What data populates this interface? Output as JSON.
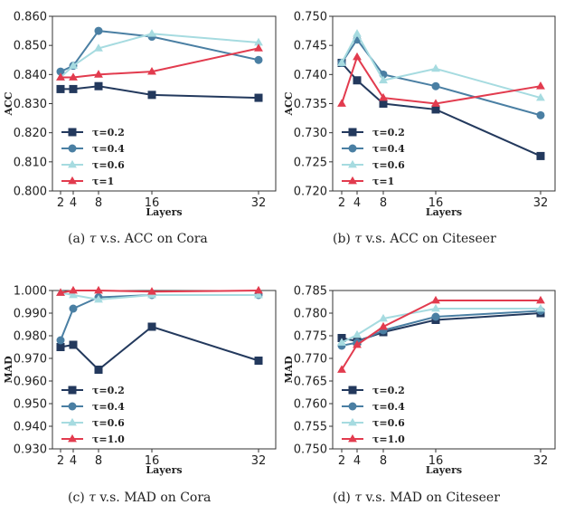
{
  "figure": {
    "captions": [
      {
        "label": "(a)",
        "tau": "τ",
        "text": "v.s. ACC on Cora"
      },
      {
        "label": "(b)",
        "tau": "τ",
        "text": "v.s. ACC on Citeseer"
      },
      {
        "label": "(c)",
        "tau": "τ",
        "text": "v.s. MAD on Cora"
      },
      {
        "label": "(d)",
        "tau": "τ",
        "text": "v.s. MAD on Citeseer"
      }
    ]
  },
  "chart_data": [
    {
      "type": "line",
      "title": "",
      "xlabel": "Layers",
      "ylabel": "ACC",
      "x": [
        2,
        4,
        8,
        16,
        32
      ],
      "xticks": [
        "2",
        "4",
        "8",
        "16",
        "32"
      ],
      "ylim": [
        0.8,
        0.86
      ],
      "yticks": [
        "0.800",
        "0.810",
        "0.820",
        "0.830",
        "0.840",
        "0.850",
        "0.860"
      ],
      "grid": false,
      "legend_position": "lower-left",
      "series": [
        {
          "name": "τ=0.2",
          "color": "#23395d",
          "marker": "square",
          "values": [
            0.835,
            0.835,
            0.836,
            0.833,
            0.832
          ]
        },
        {
          "name": "τ=0.4",
          "color": "#4a7fa3",
          "marker": "circle",
          "values": [
            0.841,
            0.843,
            0.855,
            0.853,
            0.845
          ]
        },
        {
          "name": "τ=0.6",
          "color": "#a6dbe0",
          "marker": "triangle",
          "values": [
            0.839,
            0.843,
            0.849,
            0.854,
            0.851
          ]
        },
        {
          "name": "τ=1",
          "color": "#e23b4e",
          "marker": "triangle",
          "values": [
            0.839,
            0.839,
            0.84,
            0.841,
            0.849
          ]
        }
      ]
    },
    {
      "type": "line",
      "title": "",
      "xlabel": "Layers",
      "ylabel": "ACC",
      "x": [
        2,
        4,
        8,
        16,
        32
      ],
      "xticks": [
        "2",
        "4",
        "8",
        "16",
        "32"
      ],
      "ylim": [
        0.72,
        0.75
      ],
      "yticks": [
        "0.720",
        "0.725",
        "0.730",
        "0.735",
        "0.740",
        "0.745",
        "0.750"
      ],
      "grid": false,
      "legend_position": "lower-left",
      "series": [
        {
          "name": "τ=0.2",
          "color": "#23395d",
          "marker": "square",
          "values": [
            0.742,
            0.739,
            0.735,
            0.734,
            0.726
          ]
        },
        {
          "name": "τ=0.4",
          "color": "#4a7fa3",
          "marker": "circle",
          "values": [
            0.742,
            0.746,
            0.74,
            0.738,
            0.733
          ]
        },
        {
          "name": "τ=0.6",
          "color": "#a6dbe0",
          "marker": "triangle",
          "values": [
            0.742,
            0.747,
            0.739,
            0.741,
            0.736
          ]
        },
        {
          "name": "τ=1",
          "color": "#e23b4e",
          "marker": "triangle",
          "values": [
            0.735,
            0.743,
            0.736,
            0.735,
            0.738
          ]
        }
      ]
    },
    {
      "type": "line",
      "title": "",
      "xlabel": "Layers",
      "ylabel": "MAD",
      "x": [
        2,
        4,
        8,
        16,
        32
      ],
      "xticks": [
        "2",
        "4",
        "8",
        "16",
        "32"
      ],
      "ylim": [
        0.93,
        1.0
      ],
      "yticks": [
        "0.930",
        "0.940",
        "0.950",
        "0.960",
        "0.970",
        "0.980",
        "0.990",
        "1.000"
      ],
      "grid": false,
      "legend_position": "lower-left",
      "series": [
        {
          "name": "τ=0.2",
          "color": "#23395d",
          "marker": "square",
          "values": [
            0.975,
            0.976,
            0.965,
            0.984,
            0.969
          ]
        },
        {
          "name": "τ=0.4",
          "color": "#4a7fa3",
          "marker": "circle",
          "values": [
            0.978,
            0.992,
            0.997,
            0.998,
            0.998
          ]
        },
        {
          "name": "τ=0.6",
          "color": "#a6dbe0",
          "marker": "triangle",
          "values": [
            0.999,
            0.998,
            0.996,
            0.998,
            0.998
          ]
        },
        {
          "name": "τ=1.0",
          "color": "#e23b4e",
          "marker": "triangle",
          "values": [
            0.999,
            1.0,
            1.0,
            0.9995,
            1.0
          ]
        }
      ]
    },
    {
      "type": "line",
      "title": "",
      "xlabel": "Layers",
      "ylabel": "MAD",
      "x": [
        2,
        4,
        8,
        16,
        32
      ],
      "xticks": [
        "2",
        "4",
        "8",
        "16",
        "32"
      ],
      "ylim": [
        0.75,
        0.785
      ],
      "yticks": [
        "0.750",
        "0.755",
        "0.760",
        "0.765",
        "0.770",
        "0.775",
        "0.780",
        "0.785"
      ],
      "grid": false,
      "legend_position": "lower-left",
      "series": [
        {
          "name": "τ=0.2",
          "color": "#23395d",
          "marker": "square",
          "values": [
            0.7745,
            0.7738,
            0.7758,
            0.7785,
            0.78
          ]
        },
        {
          "name": "τ=0.4",
          "color": "#4a7fa3",
          "marker": "circle",
          "values": [
            0.7728,
            0.7735,
            0.7762,
            0.7792,
            0.7805
          ]
        },
        {
          "name": "τ=0.6",
          "color": "#a6dbe0",
          "marker": "triangle",
          "values": [
            0.7735,
            0.7752,
            0.7788,
            0.781,
            0.781
          ]
        },
        {
          "name": "τ=1.0",
          "color": "#e23b4e",
          "marker": "triangle",
          "values": [
            0.7675,
            0.773,
            0.777,
            0.7828,
            0.7828
          ]
        }
      ]
    }
  ]
}
